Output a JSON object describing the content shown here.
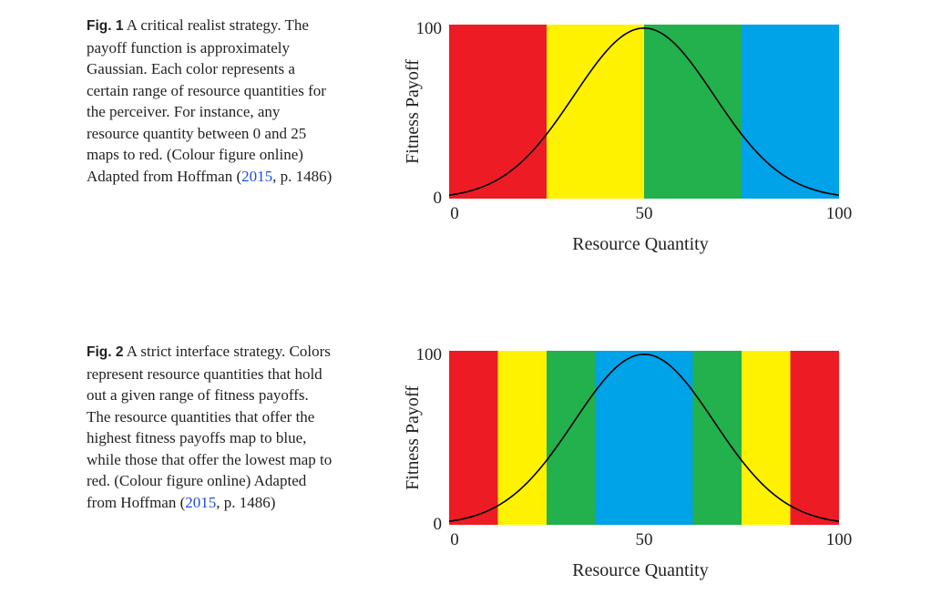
{
  "figures": [
    {
      "label": "Fig. 1",
      "caption_before": " A critical realist strategy. The payoff function is approximately Gaussian. Each color represents a certain range of resource quantities for the perceiver. For instance, any resource quantity between 0 and 25 maps to red. (Colour figure online) Adapted from Hoffman ",
      "cite": "2015",
      "caption_after": ", p. 1486)",
      "cite_open": "("
    },
    {
      "label": "Fig. 2",
      "caption_before": " A strict interface strategy. Colors represent resource quantities that hold out a given range of fitness payoffs. The resource quantities that offer the highest fitness payoffs map to blue, while those that offer the lowest map to red. (Colour figure online) Adapted from Hoffman ",
      "cite": "2015",
      "caption_after": ", p. 1486)",
      "cite_open": "("
    }
  ],
  "colors": {
    "red": "#ed1c24",
    "yellow": "#fff200",
    "green": "#22b14c",
    "blue": "#00a2e8",
    "curve": "#000000"
  },
  "chart_data": [
    {
      "type": "area",
      "xlabel": "Resource Quantity",
      "ylabel": "Fitness Payoff",
      "xlim": [
        0,
        100
      ],
      "ylim": [
        0,
        100
      ],
      "x_ticks": [
        "0",
        "50",
        "100"
      ],
      "y_ticks": [
        "0",
        "100"
      ],
      "curve": {
        "shape": "gaussian",
        "peak_x": 50,
        "peak_y": 98,
        "value_at_edges": 2
      },
      "bands": [
        {
          "from": 0,
          "to": 25,
          "color": "red"
        },
        {
          "from": 25,
          "to": 50,
          "color": "yellow"
        },
        {
          "from": 50,
          "to": 75,
          "color": "green"
        },
        {
          "from": 75,
          "to": 100,
          "color": "blue"
        }
      ]
    },
    {
      "type": "area",
      "xlabel": "Resource Quantity",
      "ylabel": "Fitness Payoff",
      "xlim": [
        0,
        100
      ],
      "ylim": [
        0,
        100
      ],
      "x_ticks": [
        "0",
        "50",
        "100"
      ],
      "y_ticks": [
        "0",
        "100"
      ],
      "curve": {
        "shape": "gaussian",
        "peak_x": 50,
        "peak_y": 98,
        "value_at_edges": 2
      },
      "bands": [
        {
          "from": 0,
          "to": 12.5,
          "color": "red"
        },
        {
          "from": 12.5,
          "to": 25,
          "color": "yellow"
        },
        {
          "from": 25,
          "to": 37.5,
          "color": "green"
        },
        {
          "from": 37.5,
          "to": 62.5,
          "color": "blue"
        },
        {
          "from": 62.5,
          "to": 75,
          "color": "green"
        },
        {
          "from": 75,
          "to": 87.5,
          "color": "yellow"
        },
        {
          "from": 87.5,
          "to": 100,
          "color": "red"
        }
      ]
    }
  ]
}
